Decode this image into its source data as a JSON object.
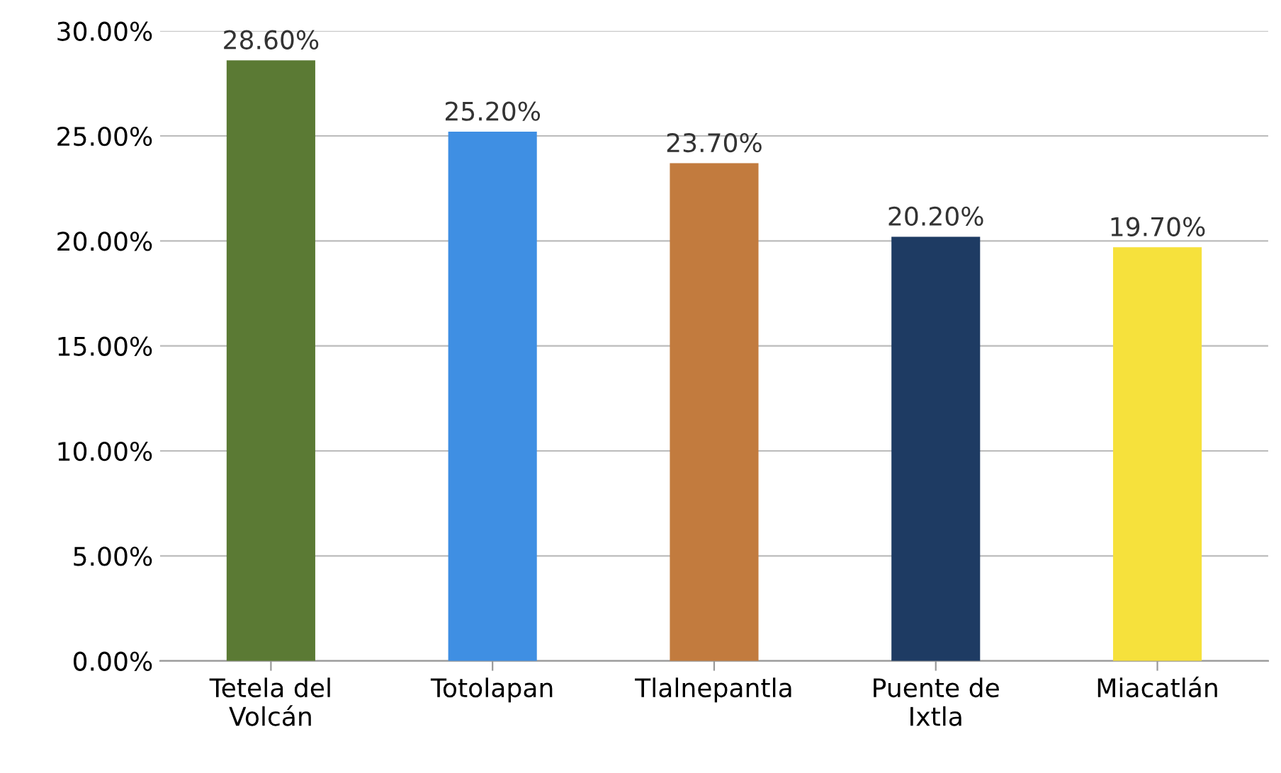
{
  "chart_data": {
    "type": "bar",
    "categories": [
      "Tetela del\nVolcán",
      "Totolapan",
      "Tlalnepantla",
      "Puente de\nIxtla",
      "Miacatlán"
    ],
    "values": [
      28.6,
      25.2,
      23.7,
      20.2,
      19.7
    ],
    "colors": [
      "#5b7a34",
      "#3f8fe3",
      "#c27b3e",
      "#1e3b63",
      "#f6e13c"
    ],
    "value_labels": [
      "28.60%",
      "25.20%",
      "23.70%",
      "20.20%",
      "19.70%"
    ],
    "ylim": [
      0,
      30
    ],
    "yticks": [
      {
        "value": 0,
        "label": "0.00%"
      },
      {
        "value": 5,
        "label": "5.00%"
      },
      {
        "value": 10,
        "label": "10.00%"
      },
      {
        "value": 15,
        "label": "15.00%"
      },
      {
        "value": 20,
        "label": "20.00%"
      },
      {
        "value": 25,
        "label": "25.00%"
      },
      {
        "value": 30,
        "label": "30.00%"
      }
    ],
    "grid": "y",
    "legend": false
  }
}
